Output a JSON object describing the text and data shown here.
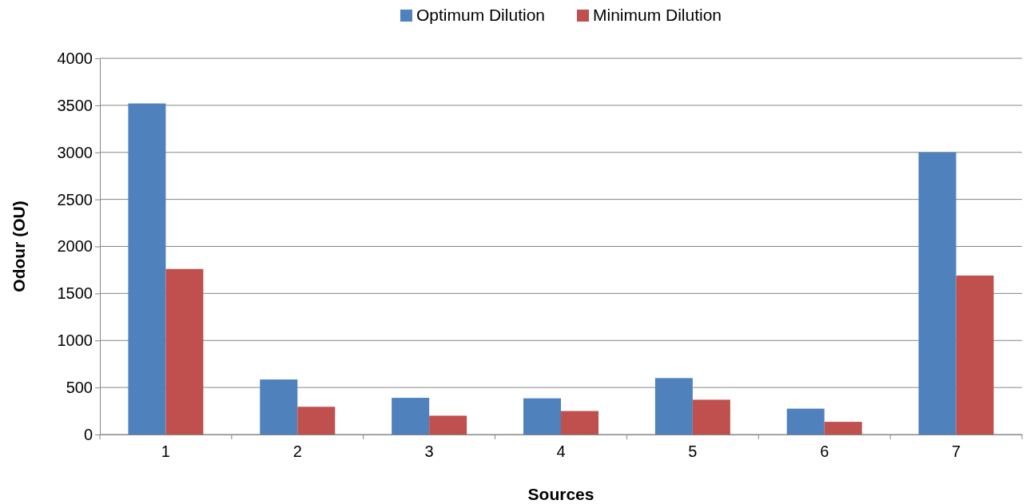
{
  "chart_data": {
    "type": "bar",
    "xlabel": "Sources",
    "ylabel": "Odour (OU)",
    "categories": [
      "1",
      "2",
      "3",
      "4",
      "5",
      "6",
      "7"
    ],
    "series": [
      {
        "name": "Optimum Dilution",
        "color": "#4f81bd",
        "values": [
          3520,
          585,
          390,
          385,
          600,
          275,
          3000
        ]
      },
      {
        "name": "Minimum Dilution",
        "color": "#c0504d",
        "values": [
          1760,
          295,
          200,
          250,
          370,
          135,
          1690
        ]
      }
    ],
    "ylim": [
      0,
      4000
    ],
    "yticks": [
      0,
      500,
      1000,
      1500,
      2000,
      2500,
      3000,
      3500,
      4000
    ],
    "grid": "y",
    "legend": "top"
  }
}
